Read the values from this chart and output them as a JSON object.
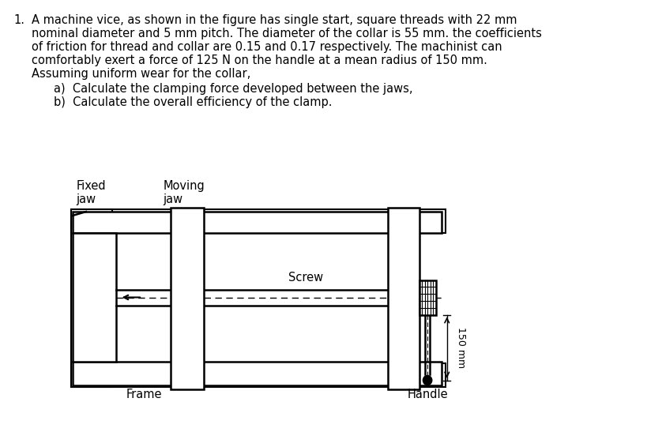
{
  "background_color": "#ffffff",
  "text_color": "#000000",
  "fig_width": 8.2,
  "fig_height": 5.47,
  "dpi": 100,
  "main_text_lines": [
    "A machine vice, as shown in the figure has single start, square threads with 22 mm",
    "nominal diameter and 5 mm pitch. The diameter of the collar is 55 mm. the coefficients",
    "of friction for thread and collar are 0.15 and 0.17 respectively. The machinist can",
    "comfortably exert a force of 125 N on the handle at a mean radius of 150 mm.",
    "Assuming uniform wear for the collar,"
  ],
  "sub_items": [
    "a)  Calculate the clamping force developed between the jaws,",
    "b)  Calculate the overall efficiency of the clamp."
  ],
  "labels": {
    "fixed_jaw": "Fixed\njaw",
    "moving_jaw": "Moving\njaw",
    "screw": "Screw",
    "frame": "Frame",
    "handle": "Handle",
    "dimension": "150 mm"
  },
  "number_prefix": "1."
}
